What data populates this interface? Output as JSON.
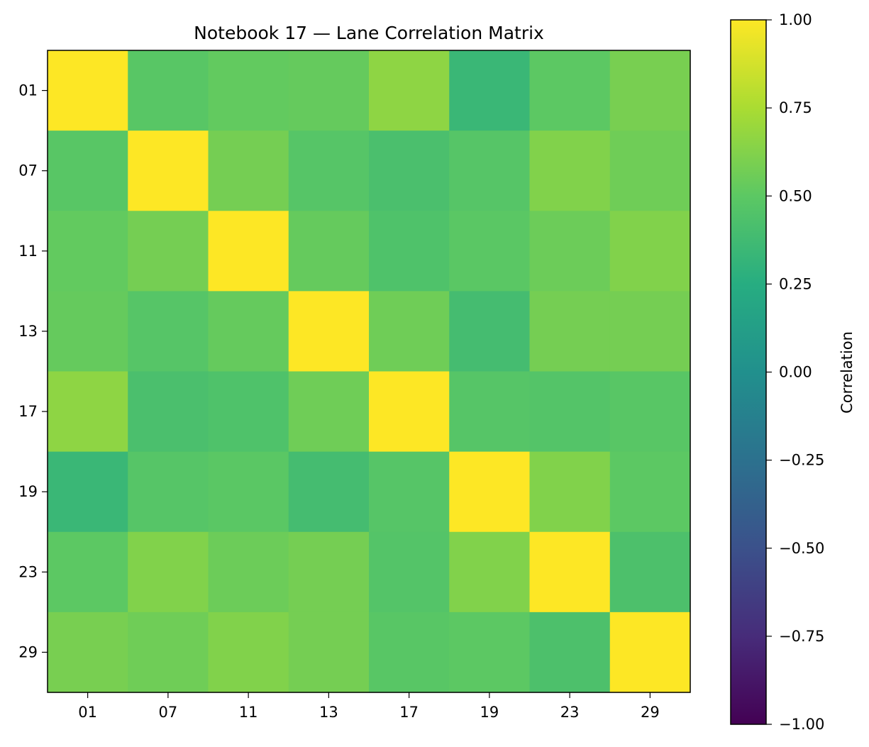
{
  "chart_data": {
    "type": "heatmap",
    "title": "Notebook 17 — Lane Correlation Matrix",
    "xlabel": "",
    "ylabel": "",
    "x_categories": [
      "01",
      "07",
      "11",
      "13",
      "17",
      "19",
      "23",
      "29"
    ],
    "y_categories": [
      "01",
      "07",
      "11",
      "13",
      "17",
      "19",
      "23",
      "29"
    ],
    "values": [
      [
        1.0,
        0.48,
        0.52,
        0.53,
        0.66,
        0.34,
        0.5,
        0.59
      ],
      [
        0.48,
        1.0,
        0.58,
        0.47,
        0.42,
        0.47,
        0.62,
        0.56
      ],
      [
        0.52,
        0.58,
        1.0,
        0.53,
        0.44,
        0.49,
        0.55,
        0.62
      ],
      [
        0.53,
        0.47,
        0.53,
        1.0,
        0.56,
        0.39,
        0.58,
        0.58
      ],
      [
        0.66,
        0.42,
        0.44,
        0.56,
        1.0,
        0.47,
        0.46,
        0.48
      ],
      [
        0.34,
        0.47,
        0.49,
        0.39,
        0.47,
        1.0,
        0.62,
        0.5
      ],
      [
        0.5,
        0.62,
        0.55,
        0.58,
        0.46,
        0.62,
        1.0,
        0.43
      ],
      [
        0.59,
        0.56,
        0.62,
        0.58,
        0.48,
        0.5,
        0.43,
        1.0
      ]
    ],
    "colormap": "viridis",
    "vmin": -1.0,
    "vmax": 1.0,
    "colorbar": {
      "label": "Correlation",
      "ticks": [
        "1.00",
        "0.75",
        "0.50",
        "0.25",
        "0.00",
        "−0.25",
        "−0.50",
        "−0.75",
        "−1.00"
      ],
      "tick_values": [
        1.0,
        0.75,
        0.5,
        0.25,
        0.0,
        -0.25,
        -0.5,
        -0.75,
        -1.0
      ]
    },
    "grid": false
  }
}
